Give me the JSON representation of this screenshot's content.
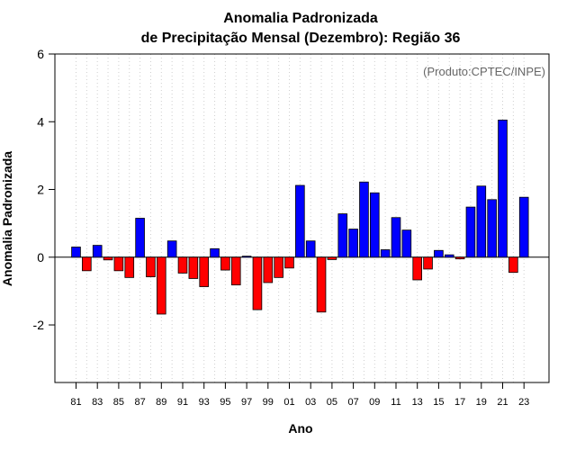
{
  "chart_data": {
    "type": "bar",
    "title": "Anomalia Padronizada",
    "subtitle": "de Precipitação Mensal (Dezembro): Região 36",
    "xlabel": "Ano",
    "ylabel": "Anomalia Padronizada",
    "credit": "(Produto:CPTEC/INPE)",
    "ylim": [
      -3.7,
      6.0
    ],
    "yticks": [
      -2,
      0,
      2,
      4,
      6
    ],
    "yticklabels": [
      "-2",
      "0",
      "2",
      "4",
      "6"
    ],
    "xticklabels": [
      "81",
      "83",
      "85",
      "87",
      "89",
      "91",
      "93",
      "95",
      "97",
      "99",
      "01",
      "03",
      "05",
      "07",
      "09",
      "11",
      "13",
      "15",
      "17",
      "19",
      "21",
      "23"
    ],
    "grid": "vertical dotted",
    "positive_color": "#0000ff",
    "negative_color": "#ff0000",
    "categories": [
      "81",
      "82",
      "83",
      "84",
      "85",
      "86",
      "87",
      "88",
      "89",
      "90",
      "91",
      "92",
      "93",
      "94",
      "95",
      "96",
      "97",
      "98",
      "99",
      "00",
      "01",
      "02",
      "03",
      "04",
      "05",
      "06",
      "07",
      "08",
      "09",
      "10",
      "11",
      "12",
      "13",
      "14",
      "15",
      "16",
      "17",
      "18",
      "19",
      "20",
      "21",
      "22",
      "23"
    ],
    "values": [
      0.3,
      -0.4,
      0.35,
      -0.08,
      -0.4,
      -0.6,
      1.15,
      -0.58,
      -1.68,
      0.48,
      -0.47,
      -0.63,
      -0.87,
      0.25,
      -0.38,
      -0.82,
      0.03,
      -1.55,
      -0.75,
      -0.6,
      -0.32,
      2.12,
      0.48,
      -1.62,
      -0.07,
      1.28,
      0.83,
      2.22,
      1.9,
      0.22,
      1.17,
      0.8,
      -0.67,
      -0.35,
      0.2,
      0.07,
      -0.05,
      1.48,
      2.1,
      1.7,
      4.05,
      -0.45,
      1.77
    ]
  }
}
